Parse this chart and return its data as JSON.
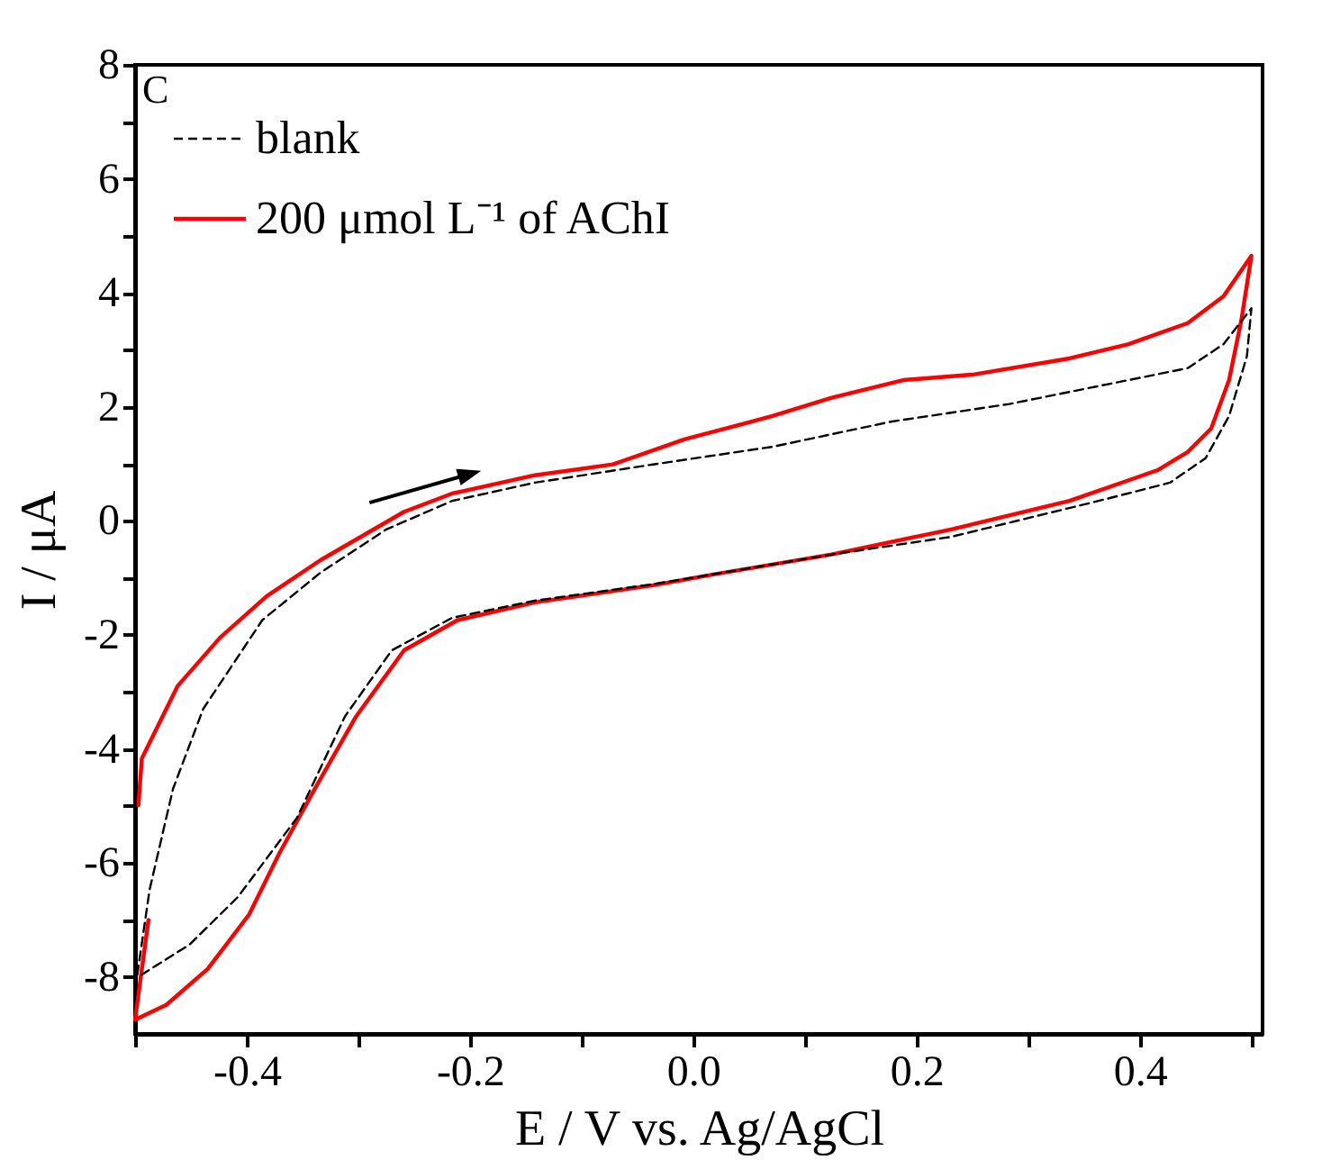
{
  "chart_data": {
    "type": "line",
    "xlabel": "E / V vs. Ag/AgCl",
    "ylabel": "I / μA",
    "annotations": [
      "C"
    ],
    "xlim": [
      -0.5,
      0.51
    ],
    "ylim": [
      -9,
      8
    ],
    "xticks": [
      {
        "value": -0.5,
        "label": null
      },
      -0.4,
      {
        "value": -0.3,
        "label": null
      },
      -0.2,
      {
        "value": -0.1,
        "label": null
      },
      {
        "value": 0,
        "label": "0.0"
      },
      {
        "value": 0.1,
        "label": null
      },
      0.2,
      {
        "value": 0.3,
        "label": null
      },
      0.4,
      {
        "value": 0.5,
        "label": null
      }
    ],
    "yticks": [
      -8,
      {
        "value": -7,
        "label": null
      },
      -6,
      {
        "value": -5,
        "label": null
      },
      -4,
      {
        "value": -3,
        "label": null
      },
      -2,
      {
        "value": -1,
        "label": null
      },
      0,
      {
        "value": 1,
        "label": null
      },
      2,
      {
        "value": 3,
        "label": null
      },
      4,
      {
        "value": 5,
        "label": null
      },
      6,
      {
        "value": 7,
        "label": null
      },
      8
    ],
    "grid": false,
    "legend": "top left",
    "marker": "none",
    "series": [
      {
        "name": "blank",
        "color": "#000000",
        "line_style": "dashed",
        "x": [
          -0.498,
          -0.487,
          -0.466,
          -0.439,
          -0.386,
          -0.334,
          -0.275,
          -0.216,
          -0.142,
          -0.036,
          0.071,
          0.177,
          0.283,
          0.39,
          0.443,
          0.475,
          0.5,
          0.496,
          0.48,
          0.459,
          0.427,
          0.363,
          0.231,
          0.124,
          -0.036,
          -0.142,
          -0.216,
          -0.27,
          -0.312,
          -0.355,
          -0.408,
          -0.451,
          -0.494
        ],
        "values": [
          -7.96,
          -6.47,
          -4.7,
          -3.3,
          -1.74,
          -0.91,
          -0.15,
          0.35,
          0.67,
          0.99,
          1.3,
          1.74,
          2.05,
          2.47,
          2.68,
          3.1,
          3.73,
          2.89,
          1.84,
          1.1,
          0.67,
          0.35,
          -0.28,
          -0.59,
          -1.11,
          -1.4,
          -1.7,
          -2.27,
          -3.43,
          -5.21,
          -6.6,
          -7.43,
          -7.96
        ]
      },
      {
        "name": "200 μmol L⁻¹ of AChI",
        "color": "#ff0000",
        "line_style": "solid",
        "x": [
          -0.497,
          -0.494,
          -0.462,
          -0.424,
          -0.382,
          -0.334,
          -0.259,
          -0.216,
          -0.142,
          -0.072,
          -0.008,
          0.044,
          0.071,
          0.124,
          0.188,
          0.252,
          0.337,
          0.39,
          0.443,
          0.475,
          0.5,
          0.491,
          0.48,
          0.464,
          0.443,
          0.416,
          0.337,
          0.231,
          0.124,
          0.018,
          -0.036,
          -0.142,
          -0.211,
          -0.259,
          -0.302,
          -0.339,
          -0.371,
          -0.398,
          -0.435,
          -0.472,
          -0.5,
          -0.488
        ],
        "values": [
          -4.99,
          -4.17,
          -2.9,
          -2.05,
          -1.32,
          -0.69,
          0.16,
          0.48,
          0.8,
          0.99,
          1.43,
          1.7,
          1.84,
          2.16,
          2.47,
          2.57,
          2.85,
          3.1,
          3.47,
          3.94,
          4.65,
          3.52,
          2.47,
          1.62,
          1.21,
          0.89,
          0.35,
          -0.15,
          -0.59,
          -0.94,
          -1.13,
          -1.43,
          -1.74,
          -2.27,
          -3.43,
          -4.7,
          -5.84,
          -6.91,
          -7.86,
          -8.49,
          -8.75,
          -7.0
        ]
      }
    ]
  }
}
